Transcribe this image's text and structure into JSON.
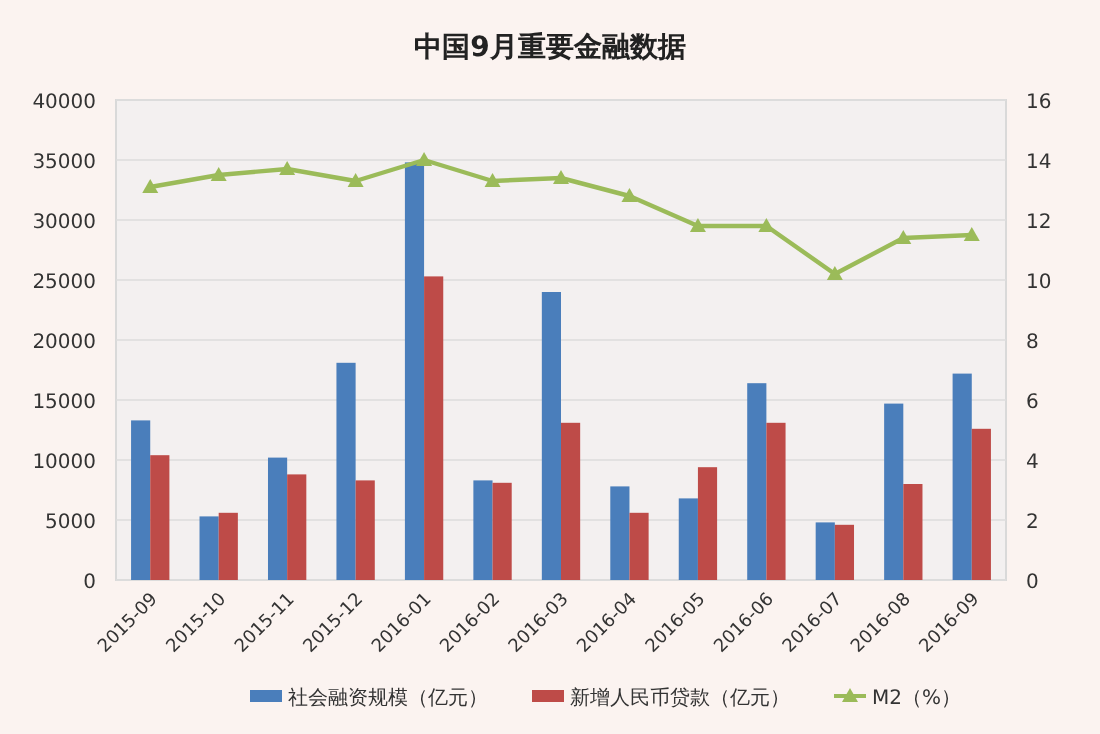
{
  "chart_data": {
    "type": "bar",
    "title": "中国9月重要金融数据",
    "categories": [
      "2015-09",
      "2015-10",
      "2015-11",
      "2015-12",
      "2016-01",
      "2016-02",
      "2016-03",
      "2016-04",
      "2016-05",
      "2016-06",
      "2016-07",
      "2016-08",
      "2016-09"
    ],
    "series": [
      {
        "name": "社会融资规模（亿元）",
        "color": "#4a7ebb",
        "values": [
          13300,
          5300,
          10200,
          18100,
          34800,
          8300,
          24000,
          7800,
          6800,
          16400,
          4800,
          14700,
          17200
        ]
      },
      {
        "name": "新增人民币贷款（亿元）",
        "color": "#be4b48",
        "values": [
          10400,
          5600,
          8800,
          8300,
          25300,
          8100,
          13100,
          5600,
          9400,
          13100,
          4600,
          8000,
          12600
        ]
      },
      {
        "name": "M2（%）",
        "type": "line",
        "axis": "y2",
        "color": "#9bbb59",
        "marker": "triangle",
        "values": [
          13.1,
          13.5,
          13.7,
          13.3,
          14.0,
          13.3,
          13.4,
          12.8,
          11.8,
          11.8,
          10.2,
          11.4,
          11.5
        ]
      }
    ],
    "ylim": [
      0,
      40000
    ],
    "yticks": [
      0,
      5000,
      10000,
      15000,
      20000,
      25000,
      30000,
      35000,
      40000
    ],
    "y2lim": [
      0,
      16
    ],
    "y2ticks": [
      0,
      2,
      4,
      6,
      8,
      10,
      12,
      14,
      16
    ],
    "grid": "y",
    "legend": "bottom"
  }
}
